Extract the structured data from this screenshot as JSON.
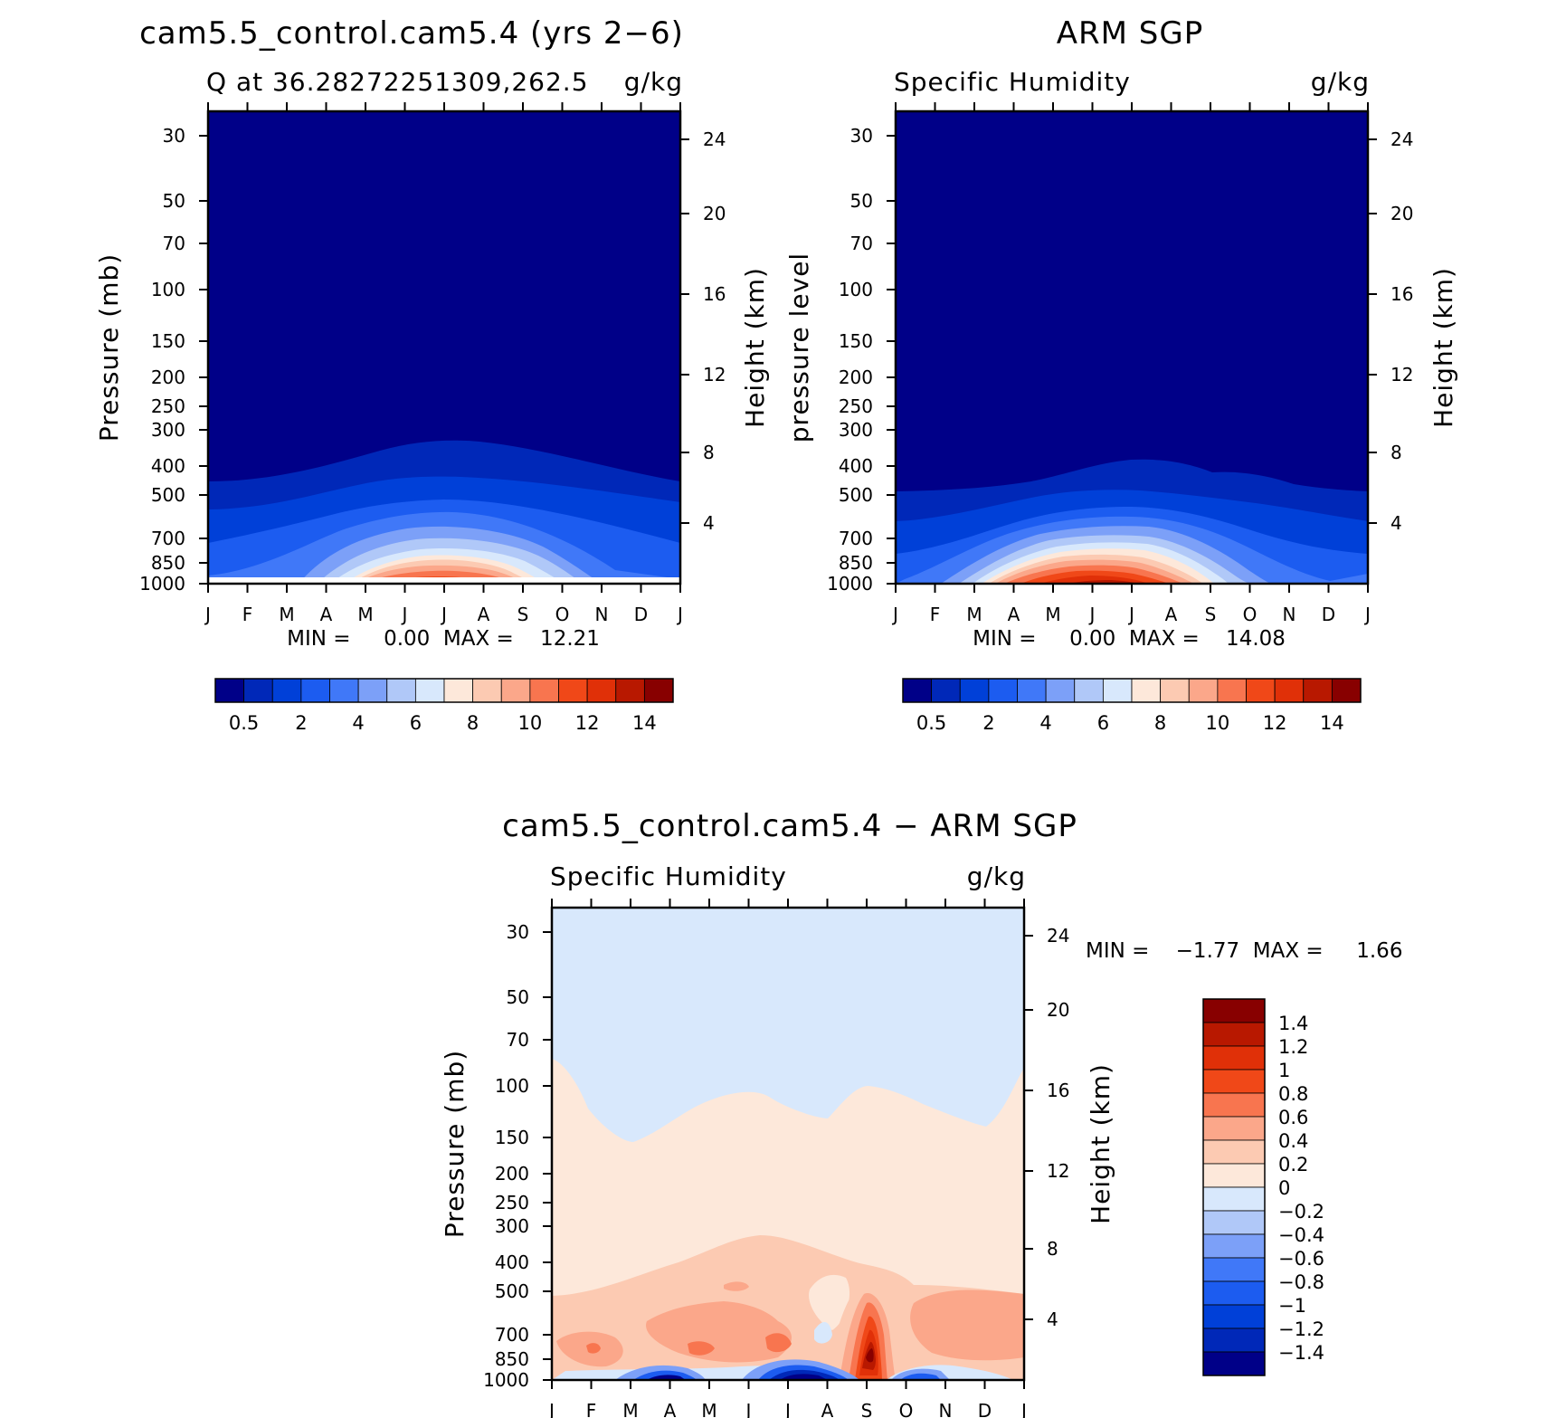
{
  "chart_data": [
    {
      "type": "contour",
      "title": "cam5.5_control.cam5.4 (yrs 2−6)",
      "subtitle_left": "Q at 36.28272251309,262.5",
      "subtitle_right": "g/kg",
      "ylabel_left": "Pressure (mb)",
      "ylabel_right": "Height (km)",
      "months": [
        "J",
        "F",
        "M",
        "A",
        "M",
        "J",
        "J",
        "A",
        "S",
        "O",
        "N",
        "D",
        "J"
      ],
      "pressure_ticks": [
        "30",
        "50",
        "70",
        "100",
        "150",
        "200",
        "250",
        "300",
        "400",
        "500",
        "700",
        "850",
        "1000"
      ],
      "height_ticks": [
        "24",
        "20",
        "16",
        "12",
        "8",
        "4"
      ],
      "stats": "MIN =     0.00  MAX =    12.21",
      "min": 0.0,
      "max": 12.21,
      "colorbar_labels": [
        "0.5",
        "2",
        "4",
        "6",
        "8",
        "10",
        "12",
        "14"
      ]
    },
    {
      "type": "contour",
      "title": "ARM SGP",
      "subtitle_left": "Specific Humidity",
      "subtitle_right": "g/kg",
      "ylabel_left": "pressure level",
      "ylabel_right": "Height (km)",
      "months": [
        "J",
        "F",
        "M",
        "A",
        "M",
        "J",
        "J",
        "A",
        "S",
        "O",
        "N",
        "D",
        "J"
      ],
      "pressure_ticks": [
        "30",
        "50",
        "70",
        "100",
        "150",
        "200",
        "250",
        "300",
        "400",
        "500",
        "700",
        "850",
        "1000"
      ],
      "height_ticks": [
        "24",
        "20",
        "16",
        "12",
        "8",
        "4"
      ],
      "stats": "MIN =     0.00  MAX =    14.08",
      "min": 0.0,
      "max": 14.08,
      "colorbar_labels": [
        "0.5",
        "2",
        "4",
        "6",
        "8",
        "10",
        "12",
        "14"
      ]
    },
    {
      "type": "contour",
      "title": "cam5.5_control.cam5.4 − ARM SGP",
      "subtitle_left": "Specific Humidity",
      "subtitle_right": "g/kg",
      "ylabel_left": "Pressure (mb)",
      "ylabel_right": "Height (km)",
      "months": [
        "J",
        "F",
        "M",
        "A",
        "M",
        "J",
        "J",
        "A",
        "S",
        "O",
        "N",
        "D",
        "J"
      ],
      "pressure_ticks": [
        "30",
        "50",
        "70",
        "100",
        "150",
        "200",
        "250",
        "300",
        "400",
        "500",
        "700",
        "850",
        "1000"
      ],
      "height_ticks": [
        "24",
        "20",
        "16",
        "12",
        "8",
        "4"
      ],
      "stats": "MIN =    −1.77  MAX =     1.66",
      "min": -1.77,
      "max": 1.66,
      "colorbar_labels": [
        "1.4",
        "1.2",
        "1",
        "0.8",
        "0.6",
        "0.4",
        "0.2",
        "0",
        "−0.2",
        "−0.4",
        "−0.6",
        "−0.8",
        "−1",
        "−1.2",
        "−1.4"
      ]
    }
  ],
  "colors": {
    "seq": [
      "#000088",
      "#0028b8",
      "#0040d8",
      "#1c5cf0",
      "#4078f8",
      "#7ca0f8",
      "#b0c8f8",
      "#d8e8fc",
      "#fde8da",
      "#fccab2",
      "#fba78a",
      "#f8754f",
      "#f04818",
      "#e03008",
      "#b81800",
      "#880000"
    ],
    "div": [
      "#880000",
      "#b81800",
      "#e03008",
      "#f04818",
      "#f8754f",
      "#fba78a",
      "#fccab2",
      "#fde8da",
      "#d8e8fc",
      "#b0c8f8",
      "#7ca0f8",
      "#4078f8",
      "#1c5cf0",
      "#0040d8",
      "#0028b8",
      "#000088"
    ]
  }
}
